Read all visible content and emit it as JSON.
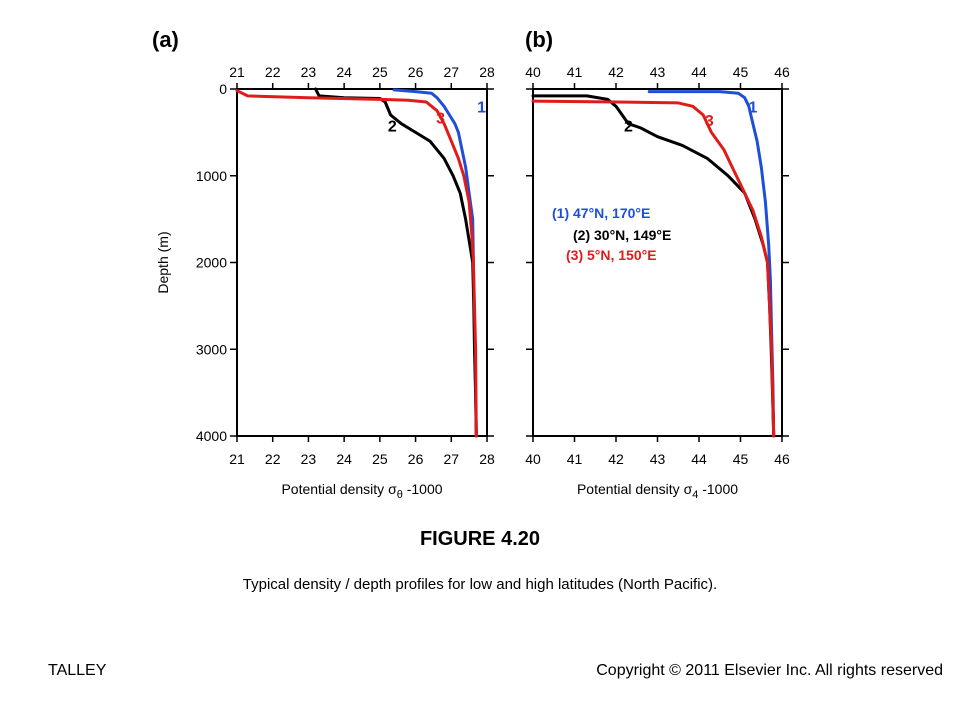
{
  "figure": {
    "title": "FIGURE 4.20",
    "caption": "Typical density / depth profiles for low and high latitudes (North Pacific).",
    "footer_left": "TALLEY",
    "footer_right": "Copyright © 2011 Elsevier Inc. All rights reserved"
  },
  "colors": {
    "1": "#1f4fd8",
    "2": "#000000",
    "3": "#e01b1b"
  },
  "chart_data": [
    {
      "type": "line",
      "panel_label": "(a)",
      "xlabel": "Potential density σθ -1000",
      "xlabel_main": "Potential density σ",
      "xlabel_sub": "θ",
      "xlabel_tail": " -1000",
      "ylabel": "Depth (m)",
      "xlim": [
        21,
        28
      ],
      "ylim": [
        0,
        4000
      ],
      "y_inverted": true,
      "xticks": [
        "21",
        "22",
        "23",
        "24",
        "25",
        "26",
        "27",
        "28"
      ],
      "yticks": [
        "0",
        "1000",
        "2000",
        "3000",
        "4000"
      ],
      "series": [
        {
          "name": "1",
          "color_key": "1",
          "x": [
            25.4,
            26.0,
            26.45,
            26.6,
            26.8,
            26.95,
            27.1,
            27.2,
            27.3,
            27.4,
            27.5,
            27.6,
            27.62,
            27.64,
            27.66,
            27.68,
            27.7
          ],
          "y": [
            10,
            30,
            50,
            100,
            200,
            300,
            400,
            500,
            700,
            900,
            1200,
            1500,
            2000,
            2500,
            3000,
            3500,
            4000
          ]
        },
        {
          "name": "2",
          "color_key": "2",
          "x": [
            23.2,
            23.3,
            24.0,
            25.0,
            25.15,
            25.3,
            25.6,
            26.0,
            26.4,
            26.8,
            27.05,
            27.25,
            27.4,
            27.52,
            27.6,
            27.63,
            27.65,
            27.68,
            27.7
          ],
          "y": [
            0,
            80,
            100,
            110,
            150,
            300,
            400,
            500,
            600,
            800,
            1000,
            1200,
            1500,
            1800,
            2000,
            2500,
            3000,
            3500,
            4000
          ]
        },
        {
          "name": "3",
          "color_key": "3",
          "x": [
            21.0,
            21.3,
            23.0,
            25.0,
            25.8,
            26.3,
            26.6,
            26.8,
            27.0,
            27.2,
            27.35,
            27.5,
            27.58,
            27.62,
            27.65,
            27.68,
            27.7
          ],
          "y": [
            20,
            80,
            100,
            120,
            130,
            150,
            250,
            400,
            600,
            800,
            1000,
            1300,
            1700,
            2000,
            2500,
            3000,
            4000
          ]
        }
      ],
      "curve_labels": [
        {
          "text": "1",
          "x": 27.5,
          "y": 200,
          "color_key": "1"
        },
        {
          "text": "2",
          "x": 25.0,
          "y": 420,
          "color_key": "2"
        },
        {
          "text": "3",
          "x": 26.35,
          "y": 330,
          "color_key": "3"
        }
      ]
    },
    {
      "type": "line",
      "panel_label": "(b)",
      "xlabel": "Potential density σ4 -1000",
      "xlabel_main": "Potential density σ",
      "xlabel_sub": "4",
      "xlabel_tail": " -1000",
      "ylabel": "",
      "xlim": [
        40,
        46
      ],
      "ylim": [
        0,
        4000
      ],
      "y_inverted": true,
      "xticks": [
        "40",
        "41",
        "42",
        "43",
        "44",
        "45",
        "46"
      ],
      "yticks": [
        "0",
        "1000",
        "2000",
        "3000",
        "4000"
      ],
      "legend": [
        "(1) 47°N, 170°E",
        "(2) 30°N, 149°E",
        "(3) 5°N, 150°E"
      ],
      "series": [
        {
          "name": "1",
          "color_key": "1",
          "x": [
            42.8,
            44.5,
            44.95,
            45.1,
            45.2,
            45.3,
            45.4,
            45.5,
            45.6,
            45.68,
            45.72,
            45.75,
            45.78,
            45.8
          ],
          "y": [
            30,
            30,
            50,
            100,
            200,
            400,
            600,
            900,
            1300,
            1800,
            2200,
            2800,
            3400,
            4000
          ]
        },
        {
          "name": "2",
          "color_key": "2",
          "x": [
            40.0,
            41.3,
            41.8,
            42.0,
            42.15,
            42.3,
            42.6,
            43.0,
            43.6,
            44.2,
            44.7,
            45.1,
            45.35,
            45.55,
            45.65,
            45.7,
            45.74,
            45.77,
            45.8
          ],
          "y": [
            80,
            80,
            120,
            200,
            300,
            400,
            450,
            550,
            650,
            800,
            1000,
            1200,
            1500,
            1800,
            2000,
            2500,
            3000,
            3500,
            4000
          ]
        },
        {
          "name": "3",
          "color_key": "3",
          "x": [
            40.0,
            42.0,
            43.5,
            43.85,
            44.1,
            44.3,
            44.6,
            44.8,
            45.0,
            45.3,
            45.5,
            45.65,
            45.7,
            45.75,
            45.8
          ],
          "y": [
            140,
            150,
            160,
            200,
            300,
            500,
            700,
            900,
            1100,
            1400,
            1700,
            2000,
            2500,
            3000,
            4000
          ]
        }
      ],
      "curve_labels": [
        {
          "text": "1",
          "x": 45.0,
          "y": 200,
          "color_key": "1"
        },
        {
          "text": "2",
          "x": 42.0,
          "y": 420,
          "color_key": "2"
        },
        {
          "text": "3",
          "x": 43.95,
          "y": 360,
          "color_key": "3"
        }
      ]
    }
  ]
}
